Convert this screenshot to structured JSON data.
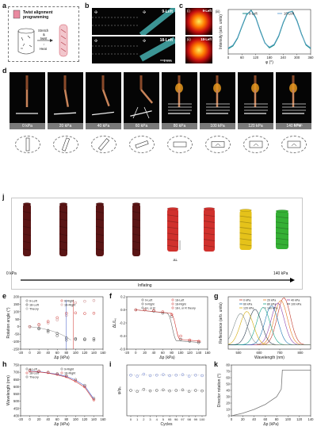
{
  "panels": {
    "a": "a",
    "b": "b",
    "c": "c",
    "d": "d",
    "j": "j",
    "e": "e",
    "f": "f",
    "g": "g",
    "h": "h",
    "i": "i",
    "k": "k"
  },
  "panel_a": {
    "title": "Twist alignment programming",
    "steps": [
      "Stretch",
      "&",
      "twist",
      "↓",
      "Heat"
    ]
  },
  "panel_b": {
    "label_top": "9-Left",
    "label_bottom": "18-Left",
    "scale": "1 mm"
  },
  "panel_c": {
    "label_i": "(i)",
    "label_ii": "(ii)",
    "label_iii": "(iii)",
    "label_9": "9-Left",
    "label_18": "18-Left"
  },
  "panel_d": {
    "scale": "5 mm",
    "pressures": [
      "0 kPa",
      "20 kPa",
      "40 kPa",
      "60 kPa",
      "80 kPa",
      "100 kPa",
      "120 kPa",
      "140 kPa"
    ]
  },
  "panel_j": {
    "start": "0 kPa",
    "end": "140 kPa",
    "axis": "Inflating",
    "delta": "ΔL"
  },
  "colors": {
    "red": "#d0312d",
    "yellow": "#e5c21a",
    "green": "#35b035",
    "dark_red": "#5a1515",
    "blue_line": "#3a57c6",
    "teal": "#1a8c8c"
  },
  "chart_data": [
    {
      "id": "c-iii",
      "type": "line",
      "ylabel": "Intensity (arb. units)",
      "xlabel": "φ (°)",
      "x_ticks": [
        "0",
        "60",
        "120",
        "180",
        "240",
        "300",
        "360"
      ],
      "xlim": [
        0,
        360
      ],
      "ylim": [
        0,
        1
      ],
      "series": [
        {
          "name": "9-Left",
          "x": [
            0,
            20,
            40,
            60,
            80,
            100,
            120,
            140,
            160,
            180,
            200,
            220,
            240,
            260,
            280,
            300,
            320,
            340,
            360
          ],
          "values": [
            0.12,
            0.18,
            0.35,
            0.62,
            0.88,
            0.98,
            0.82,
            0.52,
            0.25,
            0.14,
            0.2,
            0.4,
            0.7,
            0.93,
            0.96,
            0.75,
            0.45,
            0.2,
            0.12
          ]
        },
        {
          "name": "18-Left",
          "x": [
            0,
            20,
            40,
            60,
            80,
            100,
            120,
            140,
            160,
            180,
            200,
            220,
            240,
            260,
            280,
            300,
            320,
            340,
            360
          ],
          "values": [
            0.14,
            0.2,
            0.37,
            0.64,
            0.9,
            0.97,
            0.8,
            0.5,
            0.24,
            0.16,
            0.22,
            0.42,
            0.72,
            0.94,
            0.95,
            0.73,
            0.43,
            0.22,
            0.14
          ]
        }
      ]
    },
    {
      "id": "e",
      "type": "scatter",
      "xlabel": "Δp (kPa)",
      "ylabel": "Rotation angle (°)",
      "x_ticks": [
        "-20",
        "0",
        "20",
        "40",
        "60",
        "80",
        "100",
        "120",
        "140",
        "160"
      ],
      "y_ticks": [
        "-150",
        "-100",
        "-50",
        "0",
        "50",
        "100",
        "150",
        "200"
      ],
      "xlim": [
        -20,
        160
      ],
      "ylim": [
        -150,
        200
      ],
      "legend": [
        "9-Left",
        "18-Left",
        "9-Right",
        "18-Right",
        "Theory"
      ],
      "series": [
        {
          "name": "9-Left",
          "x": [
            0,
            20,
            40,
            60,
            80,
            100,
            120,
            140
          ],
          "values": [
            0,
            -15,
            -35,
            -60,
            -90,
            -85,
            -88,
            -90
          ]
        },
        {
          "name": "18-Left",
          "x": [
            0,
            20,
            40,
            60,
            80,
            100,
            120,
            140
          ],
          "values": [
            0,
            -10,
            -25,
            -45,
            -75,
            -80,
            -82,
            -80
          ]
        },
        {
          "name": "9-Right",
          "x": [
            0,
            20,
            40,
            60,
            80,
            100,
            120,
            140
          ],
          "values": [
            0,
            15,
            35,
            60,
            90,
            92,
            88,
            90
          ]
        },
        {
          "name": "18-Right",
          "x": [
            0,
            20,
            40,
            60,
            80,
            100,
            120,
            140
          ],
          "values": [
            0,
            10,
            25,
            45,
            75,
            160,
            170,
            175
          ]
        }
      ]
    },
    {
      "id": "f",
      "type": "line",
      "xlabel": "Δp (kPa)",
      "ylabel": "ΔL/L₀",
      "x_ticks": [
        "-20",
        "0",
        "20",
        "40",
        "60",
        "80",
        "100",
        "120",
        "140",
        "160"
      ],
      "y_ticks": [
        "-0.6",
        "-0.4",
        "-0.2",
        "0.0",
        "0.2"
      ],
      "xlim": [
        -20,
        160
      ],
      "ylim": [
        -0.6,
        0.2
      ],
      "legend": [
        "9-Left",
        "18-Left",
        "9-Right",
        "18-Right",
        "9-L or R",
        "18-L or R theory"
      ],
      "series": [
        {
          "name": "9-Left",
          "x": [
            0,
            20,
            40,
            60,
            80,
            100,
            120,
            140
          ],
          "values": [
            0,
            0,
            -0.02,
            -0.05,
            -0.1,
            -0.45,
            -0.48,
            -0.5
          ]
        },
        {
          "name": "18-Left",
          "x": [
            0,
            20,
            40,
            60,
            80,
            100,
            120,
            140
          ],
          "values": [
            0,
            0,
            -0.01,
            -0.03,
            -0.07,
            -0.4,
            -0.46,
            -0.48
          ]
        }
      ]
    },
    {
      "id": "g",
      "type": "line",
      "xlabel": "Wavelength (nm)",
      "ylabel": "Reflectance (arb. units)",
      "x_ticks": [
        "500",
        "600",
        "700",
        "800"
      ],
      "xlim": [
        450,
        850
      ],
      "ylim": [
        0,
        100
      ],
      "legend": [
        "0 kPa",
        "20 kPa",
        "40 kPa",
        "60 kPa",
        "80 kPa",
        "100 kPa",
        "120 kPa",
        "140 kPa"
      ],
      "series": [
        {
          "name": "0 kPa",
          "peak": 720,
          "height": 90
        },
        {
          "name": "20 kPa",
          "peak": 705,
          "height": 85
        },
        {
          "name": "40 kPa",
          "peak": 690,
          "height": 80
        },
        {
          "name": "60 kPa",
          "peak": 660,
          "height": 75
        },
        {
          "name": "80 kPa",
          "peak": 620,
          "height": 72
        },
        {
          "name": "100 kPa",
          "peak": 580,
          "height": 68
        },
        {
          "name": "120 kPa",
          "peak": 540,
          "height": 64
        },
        {
          "name": "140 kPa",
          "peak": 510,
          "height": 60
        }
      ]
    },
    {
      "id": "h",
      "type": "scatter",
      "xlabel": "Δp (kPa)",
      "ylabel": "Wavelength (nm)",
      "x_ticks": [
        "-20",
        "0",
        "20",
        "40",
        "60",
        "80",
        "100",
        "120",
        "140",
        "160"
      ],
      "y_ticks": [
        "400",
        "450",
        "500",
        "550",
        "600",
        "650",
        "700",
        "750"
      ],
      "xlim": [
        -20,
        160
      ],
      "ylim": [
        400,
        750
      ],
      "legend": [
        "9-Left",
        "18-Left",
        "9-Right",
        "18-Right",
        "Theory"
      ],
      "series": [
        {
          "name": "9-Left",
          "x": [
            0,
            20,
            40,
            60,
            80,
            100,
            120,
            140
          ],
          "values": [
            712,
            708,
            700,
            690,
            675,
            650,
            610,
            520
          ]
        },
        {
          "name": "18-Left",
          "x": [
            0,
            20,
            40,
            60,
            80,
            100,
            120,
            140
          ],
          "values": [
            710,
            706,
            698,
            686,
            670,
            640,
            600,
            510
          ]
        }
      ]
    },
    {
      "id": "i",
      "type": "scatter",
      "xlabel": "Cycles",
      "ylabel": "φ/φ₀",
      "x_ticks": [
        "0",
        "1",
        "2",
        "3",
        "4",
        "5",
        "95",
        "96",
        "97",
        "98",
        "99",
        "100"
      ],
      "series": [
        {
          "name": "ratio",
          "x": [
            0,
            1,
            2,
            3,
            4,
            5,
            95,
            96,
            97,
            98,
            99,
            100
          ],
          "values": [
            1.0,
            0.98,
            1.02,
            0.99,
            1.0,
            1.01,
            0.99,
            1.0,
            1.01,
            0.98,
            1.0,
            0.99
          ]
        }
      ]
    },
    {
      "id": "k",
      "type": "line",
      "xlabel": "Δp (kPa)",
      "ylabel": "Director rotation (°)",
      "x_ticks": [
        "0",
        "20",
        "40",
        "60",
        "80",
        "100",
        "120",
        "140"
      ],
      "y_ticks": [
        "0",
        "10",
        "20",
        "30",
        "40",
        "50",
        "60",
        "70",
        "80"
      ],
      "xlim": [
        0,
        140
      ],
      "ylim": [
        0,
        80
      ],
      "series": [
        {
          "name": "rotation",
          "x": [
            0,
            20,
            40,
            60,
            80,
            88,
            90,
            100,
            120,
            140
          ],
          "values": [
            0,
            4,
            10,
            18,
            30,
            42,
            72,
            72,
            72,
            72
          ]
        }
      ]
    }
  ]
}
